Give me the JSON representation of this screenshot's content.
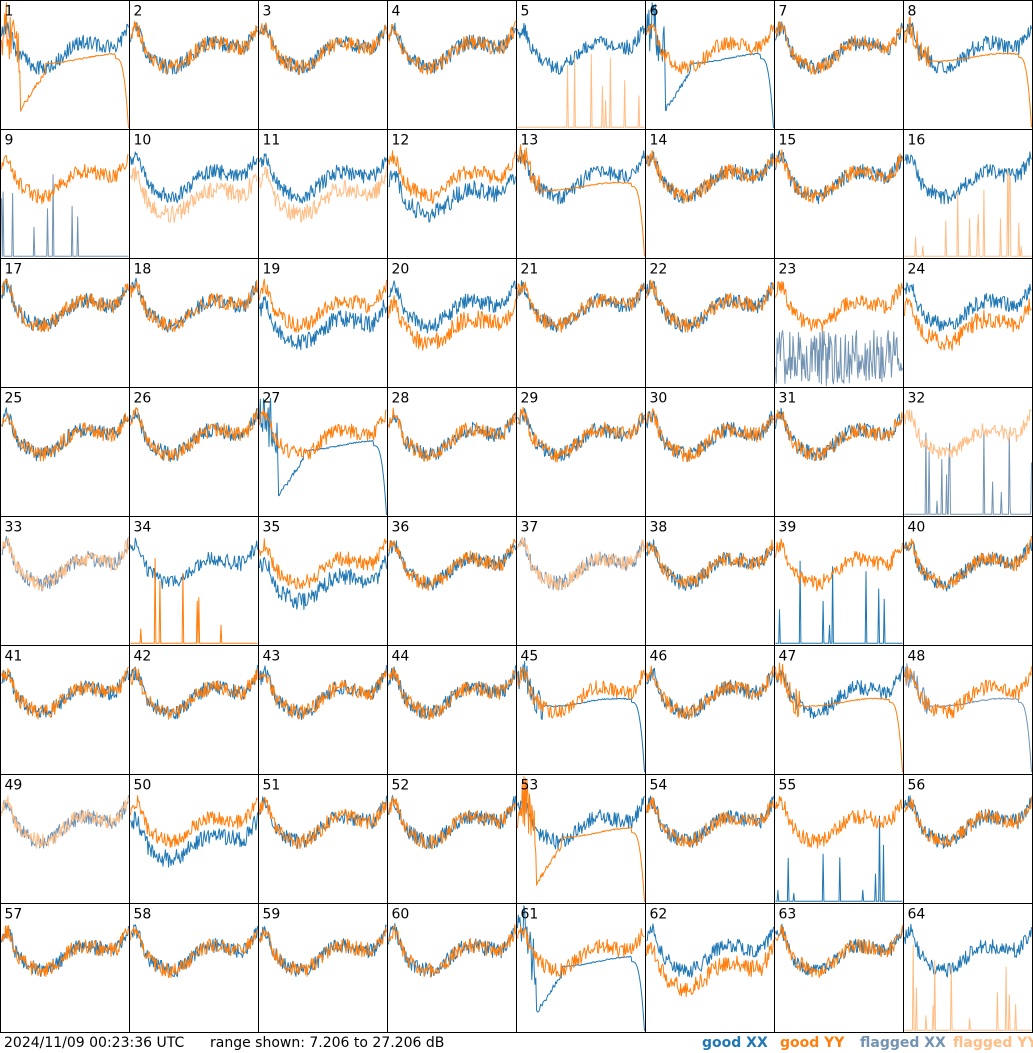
{
  "footer": {
    "timestamp": "2024/11/09 00:23:36 UTC",
    "range_text": "range shown: 7.206 to 27.206 dB"
  },
  "legend": [
    {
      "label": "good XX",
      "color": "#1f77b4"
    },
    {
      "label": "good YY",
      "color": "#ff7f0e"
    },
    {
      "label": "flagged XX",
      "color": "#7393b3"
    },
    {
      "label": "flagged YY",
      "color": "#ffbe86"
    }
  ],
  "chart_data": {
    "type": "line",
    "layout": "small-multiples",
    "columns": 8,
    "rows": 8,
    "ylim": [
      7.206,
      27.206
    ],
    "units": "dB",
    "panels": [
      {
        "id": 1,
        "xx": "good",
        "yy": "good",
        "xx_shape": "normal",
        "yy_shape": "dip-sag"
      },
      {
        "id": 2,
        "xx": "good",
        "yy": "good",
        "xx_shape": "normal",
        "yy_shape": "normal"
      },
      {
        "id": 3,
        "xx": "good",
        "yy": "good",
        "xx_shape": "normal",
        "yy_shape": "normal"
      },
      {
        "id": 4,
        "xx": "good",
        "yy": "good",
        "xx_shape": "normal",
        "yy_shape": "normal"
      },
      {
        "id": 5,
        "xx": "good",
        "yy": "flagged",
        "xx_shape": "normal",
        "yy_shape": "spikes"
      },
      {
        "id": 6,
        "xx": "good",
        "yy": "good",
        "xx_shape": "dip-sag",
        "yy_shape": "normal"
      },
      {
        "id": 7,
        "xx": "good",
        "yy": "good",
        "xx_shape": "normal",
        "yy_shape": "normal"
      },
      {
        "id": 8,
        "xx": "good",
        "yy": "good",
        "xx_shape": "normal",
        "yy_shape": "sag"
      },
      {
        "id": 9,
        "xx": "flagged",
        "yy": "good",
        "xx_shape": "spikes",
        "yy_shape": "normal"
      },
      {
        "id": 10,
        "xx": "good",
        "yy": "flagged",
        "xx_shape": "normal",
        "yy_shape": "low"
      },
      {
        "id": 11,
        "xx": "good",
        "yy": "flagged",
        "xx_shape": "normal",
        "yy_shape": "low"
      },
      {
        "id": 12,
        "xx": "good",
        "yy": "good",
        "xx_shape": "low",
        "yy_shape": "normal"
      },
      {
        "id": 13,
        "xx": "good",
        "yy": "good",
        "xx_shape": "normal",
        "yy_shape": "sag"
      },
      {
        "id": 14,
        "xx": "good",
        "yy": "good",
        "xx_shape": "normal",
        "yy_shape": "normal"
      },
      {
        "id": 15,
        "xx": "good",
        "yy": "good",
        "xx_shape": "normal",
        "yy_shape": "normal"
      },
      {
        "id": 16,
        "xx": "good",
        "yy": "flagged",
        "xx_shape": "normal",
        "yy_shape": "spikes"
      },
      {
        "id": 17,
        "xx": "good",
        "yy": "good",
        "xx_shape": "normal",
        "yy_shape": "normal"
      },
      {
        "id": 18,
        "xx": "good",
        "yy": "good",
        "xx_shape": "normal",
        "yy_shape": "normal"
      },
      {
        "id": 19,
        "xx": "good",
        "yy": "good",
        "xx_shape": "low",
        "yy_shape": "normal"
      },
      {
        "id": 20,
        "xx": "good",
        "yy": "good",
        "xx_shape": "normal",
        "yy_shape": "low"
      },
      {
        "id": 21,
        "xx": "good",
        "yy": "good",
        "xx_shape": "normal",
        "yy_shape": "normal"
      },
      {
        "id": 22,
        "xx": "good",
        "yy": "good",
        "xx_shape": "normal",
        "yy_shape": "normal"
      },
      {
        "id": 23,
        "xx": "flagged",
        "yy": "good",
        "xx_shape": "noisy",
        "yy_shape": "normal"
      },
      {
        "id": 24,
        "xx": "good",
        "yy": "good",
        "xx_shape": "normal",
        "yy_shape": "low"
      },
      {
        "id": 25,
        "xx": "good",
        "yy": "good",
        "xx_shape": "normal",
        "yy_shape": "normal"
      },
      {
        "id": 26,
        "xx": "good",
        "yy": "good",
        "xx_shape": "normal",
        "yy_shape": "normal"
      },
      {
        "id": 27,
        "xx": "good",
        "yy": "good",
        "xx_shape": "dip-sag",
        "yy_shape": "normal"
      },
      {
        "id": 28,
        "xx": "good",
        "yy": "good",
        "xx_shape": "normal",
        "yy_shape": "normal"
      },
      {
        "id": 29,
        "xx": "good",
        "yy": "good",
        "xx_shape": "normal",
        "yy_shape": "normal"
      },
      {
        "id": 30,
        "xx": "good",
        "yy": "good",
        "xx_shape": "normal",
        "yy_shape": "normal"
      },
      {
        "id": 31,
        "xx": "good",
        "yy": "good",
        "xx_shape": "normal",
        "yy_shape": "normal"
      },
      {
        "id": 32,
        "xx": "flagged",
        "yy": "flagged",
        "xx_shape": "spikes",
        "yy_shape": "normal"
      },
      {
        "id": 33,
        "xx": "flagged",
        "yy": "flagged",
        "xx_shape": "normal",
        "yy_shape": "normal"
      },
      {
        "id": 34,
        "xx": "good",
        "yy": "good",
        "xx_shape": "normal",
        "yy_shape": "spikes"
      },
      {
        "id": 35,
        "xx": "good",
        "yy": "good",
        "xx_shape": "low",
        "yy_shape": "normal"
      },
      {
        "id": 36,
        "xx": "good",
        "yy": "good",
        "xx_shape": "normal",
        "yy_shape": "normal"
      },
      {
        "id": 37,
        "xx": "flagged",
        "yy": "flagged",
        "xx_shape": "normal",
        "yy_shape": "normal"
      },
      {
        "id": 38,
        "xx": "good",
        "yy": "good",
        "xx_shape": "normal",
        "yy_shape": "normal"
      },
      {
        "id": 39,
        "xx": "good",
        "yy": "good",
        "xx_shape": "spikes",
        "yy_shape": "normal"
      },
      {
        "id": 40,
        "xx": "good",
        "yy": "good",
        "xx_shape": "normal",
        "yy_shape": "normal"
      },
      {
        "id": 41,
        "xx": "good",
        "yy": "good",
        "xx_shape": "normal",
        "yy_shape": "normal"
      },
      {
        "id": 42,
        "xx": "good",
        "yy": "good",
        "xx_shape": "normal",
        "yy_shape": "normal"
      },
      {
        "id": 43,
        "xx": "good",
        "yy": "good",
        "xx_shape": "normal",
        "yy_shape": "normal"
      },
      {
        "id": 44,
        "xx": "good",
        "yy": "good",
        "xx_shape": "normal",
        "yy_shape": "normal"
      },
      {
        "id": 45,
        "xx": "good",
        "yy": "good",
        "xx_shape": "sag",
        "yy_shape": "normal"
      },
      {
        "id": 46,
        "xx": "good",
        "yy": "good",
        "xx_shape": "normal",
        "yy_shape": "normal"
      },
      {
        "id": 47,
        "xx": "good",
        "yy": "good",
        "xx_shape": "normal",
        "yy_shape": "sag"
      },
      {
        "id": 48,
        "xx": "flagged",
        "yy": "good",
        "xx_shape": "sag",
        "yy_shape": "normal"
      },
      {
        "id": 49,
        "xx": "flagged",
        "yy": "flagged",
        "xx_shape": "normal",
        "yy_shape": "normal"
      },
      {
        "id": 50,
        "xx": "good",
        "yy": "good",
        "xx_shape": "low",
        "yy_shape": "normal"
      },
      {
        "id": 51,
        "xx": "good",
        "yy": "good",
        "xx_shape": "normal",
        "yy_shape": "normal"
      },
      {
        "id": 52,
        "xx": "good",
        "yy": "good",
        "xx_shape": "normal",
        "yy_shape": "normal"
      },
      {
        "id": 53,
        "xx": "good",
        "yy": "good",
        "xx_shape": "normal",
        "yy_shape": "dip-sag"
      },
      {
        "id": 54,
        "xx": "good",
        "yy": "good",
        "xx_shape": "normal",
        "yy_shape": "normal"
      },
      {
        "id": 55,
        "xx": "good",
        "yy": "good",
        "xx_shape": "spikes",
        "yy_shape": "normal"
      },
      {
        "id": 56,
        "xx": "good",
        "yy": "good",
        "xx_shape": "normal",
        "yy_shape": "normal"
      },
      {
        "id": 57,
        "xx": "good",
        "yy": "good",
        "xx_shape": "normal",
        "yy_shape": "normal"
      },
      {
        "id": 58,
        "xx": "good",
        "yy": "good",
        "xx_shape": "normal",
        "yy_shape": "normal"
      },
      {
        "id": 59,
        "xx": "good",
        "yy": "good",
        "xx_shape": "normal",
        "yy_shape": "normal"
      },
      {
        "id": 60,
        "xx": "good",
        "yy": "good",
        "xx_shape": "normal",
        "yy_shape": "normal"
      },
      {
        "id": 61,
        "xx": "good",
        "yy": "good",
        "xx_shape": "dip-sag",
        "yy_shape": "normal"
      },
      {
        "id": 62,
        "xx": "good",
        "yy": "good",
        "xx_shape": "normal",
        "yy_shape": "low"
      },
      {
        "id": 63,
        "xx": "good",
        "yy": "good",
        "xx_shape": "normal",
        "yy_shape": "normal"
      },
      {
        "id": 64,
        "xx": "good",
        "yy": "flagged",
        "xx_shape": "normal",
        "yy_shape": "spikes"
      }
    ]
  }
}
